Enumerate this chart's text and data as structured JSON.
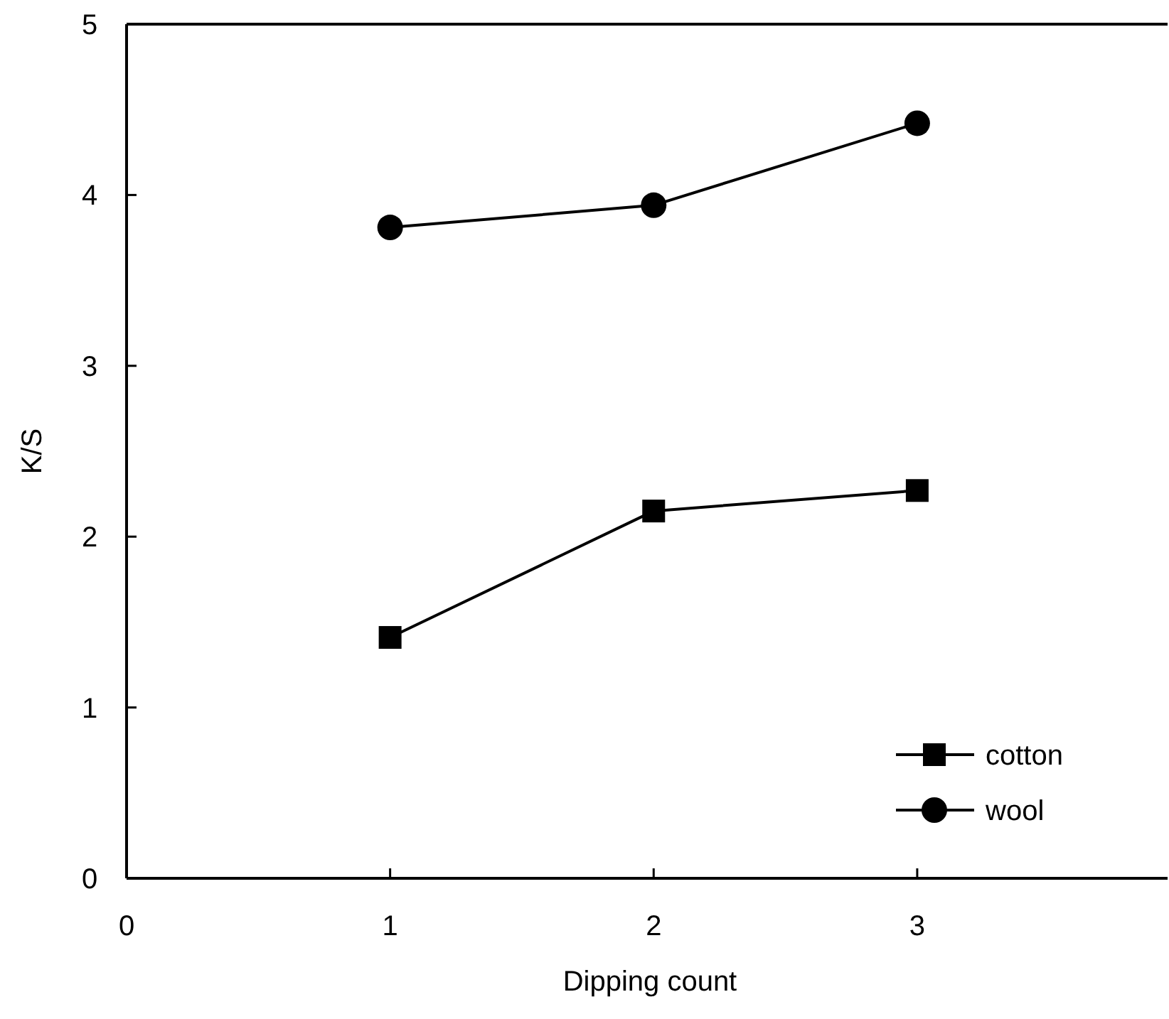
{
  "chart_data": {
    "type": "line",
    "xlabel": "Dipping count",
    "ylabel": "K/S",
    "x": [
      1,
      2,
      3
    ],
    "series": [
      {
        "name": "cotton",
        "color": "#000000",
        "marker": "square",
        "values": [
          1.41,
          2.15,
          2.27
        ]
      },
      {
        "name": "wool",
        "color": "#000000",
        "marker": "circle",
        "values": [
          3.81,
          3.94,
          4.42
        ]
      }
    ],
    "xlim": [
      0,
      3.95
    ],
    "xticks": [
      0,
      1,
      2,
      3
    ],
    "ylim": [
      0,
      5
    ],
    "yticks": [
      0,
      1,
      2,
      3,
      4,
      5
    ],
    "grid": false,
    "legend": "bottom right",
    "line_style": "solid"
  }
}
